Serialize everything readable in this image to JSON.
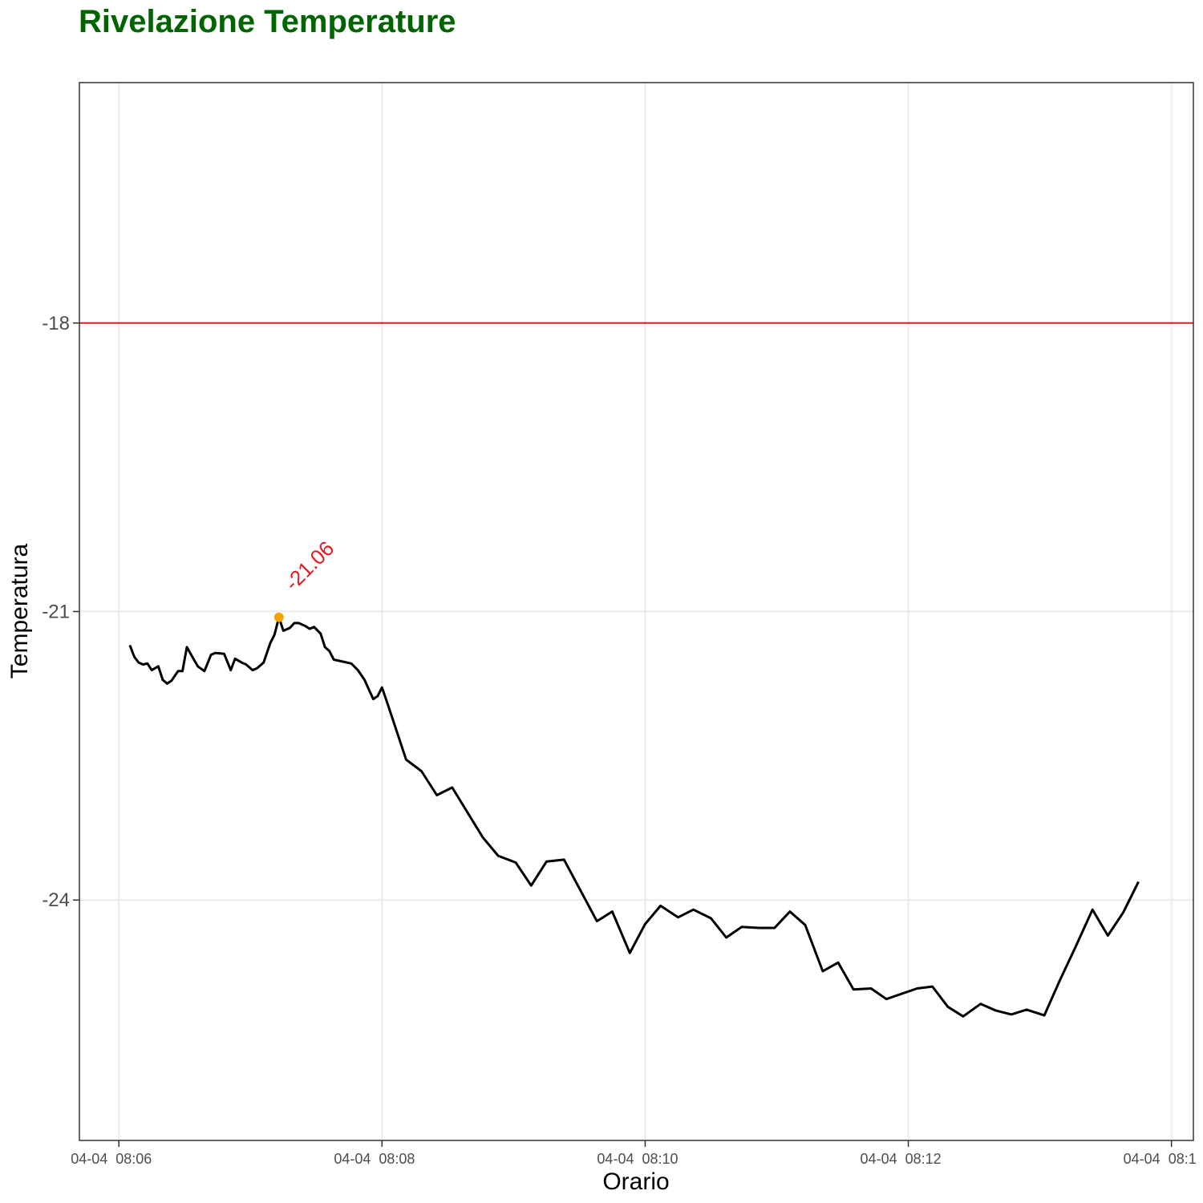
{
  "chart_data": {
    "type": "line",
    "title": "Rivelazione Temperature",
    "xlabel": "Orario",
    "ylabel": "Temperatura",
    "x_axis_kind": "time",
    "xlim": [
      "08:05:42",
      "08:14:10"
    ],
    "ylim": [
      -26.5,
      -15.5
    ],
    "y_ticks": [
      -18,
      -21,
      -24
    ],
    "y_tick_labels": [
      "-18",
      "-21",
      "-24"
    ],
    "x_ticks": [
      "08:06:00",
      "08:08:00",
      "08:10:00",
      "08:12:00",
      "08:14:00"
    ],
    "x_tick_labels": [
      "04-04  08:06",
      "04-04  08:08",
      "04-04  08:10",
      "04-04  08:12",
      "04-04  08:1"
    ],
    "grid": true,
    "threshold": {
      "value": -18,
      "color": "#e41a1c"
    },
    "series": [
      {
        "color": "#000000",
        "points": [
          [
            "08:06:05",
            -21.35
          ],
          [
            "08:06:07",
            -21.47
          ],
          [
            "08:06:09",
            -21.53
          ],
          [
            "08:06:11",
            -21.55
          ],
          [
            "08:06:13",
            -21.54
          ],
          [
            "08:06:15",
            -21.61
          ],
          [
            "08:06:18",
            -21.57
          ],
          [
            "08:06:20",
            -21.71
          ],
          [
            "08:06:22",
            -21.75
          ],
          [
            "08:06:24",
            -21.72
          ],
          [
            "08:06:27",
            -21.62
          ],
          [
            "08:06:29",
            -21.62
          ],
          [
            "08:06:31",
            -21.37
          ],
          [
            "08:06:33",
            -21.45
          ],
          [
            "08:06:36",
            -21.57
          ],
          [
            "08:06:39",
            -21.62
          ],
          [
            "08:06:42",
            -21.45
          ],
          [
            "08:06:44",
            -21.43
          ],
          [
            "08:06:48",
            -21.44
          ],
          [
            "08:06:51",
            -21.61
          ],
          [
            "08:06:53",
            -21.49
          ],
          [
            "08:06:56",
            -21.53
          ],
          [
            "08:06:58",
            -21.55
          ],
          [
            "08:07:01",
            -21.61
          ],
          [
            "08:07:03",
            -21.59
          ],
          [
            "08:07:06",
            -21.53
          ],
          [
            "08:07:09",
            -21.33
          ],
          [
            "08:07:11",
            -21.24
          ],
          [
            "08:07:13",
            -21.06
          ],
          [
            "08:07:15",
            -21.2
          ],
          [
            "08:07:18",
            -21.17
          ],
          [
            "08:07:20",
            -21.12
          ],
          [
            "08:07:22",
            -21.12
          ],
          [
            "08:07:25",
            -21.15
          ],
          [
            "08:07:27",
            -21.18
          ],
          [
            "08:07:29",
            -21.16
          ],
          [
            "08:07:32",
            -21.23
          ],
          [
            "08:07:34",
            -21.37
          ],
          [
            "08:07:36",
            -21.41
          ],
          [
            "08:07:38",
            -21.5
          ],
          [
            "08:07:42",
            -21.52
          ],
          [
            "08:07:46",
            -21.54
          ],
          [
            "08:07:49",
            -21.61
          ],
          [
            "08:07:52",
            -21.71
          ],
          [
            "08:07:54",
            -21.81
          ],
          [
            "08:07:56",
            -21.91
          ],
          [
            "08:07:58",
            -21.88
          ],
          [
            "08:08:00",
            -21.79
          ],
          [
            "08:08:03",
            -21.99
          ],
          [
            "08:08:11",
            -22.54
          ],
          [
            "08:08:18",
            -22.66
          ],
          [
            "08:08:25",
            -22.91
          ],
          [
            "08:08:32",
            -22.83
          ],
          [
            "08:08:46",
            -23.35
          ],
          [
            "08:08:53",
            -23.54
          ],
          [
            "08:09:01",
            -23.61
          ],
          [
            "08:09:08",
            -23.85
          ],
          [
            "08:09:15",
            -23.6
          ],
          [
            "08:09:23",
            -23.58
          ],
          [
            "08:09:38",
            -24.22
          ],
          [
            "08:09:45",
            -24.12
          ],
          [
            "08:09:53",
            -24.55
          ],
          [
            "08:10:00",
            -24.25
          ],
          [
            "08:10:07",
            -24.06
          ],
          [
            "08:10:15",
            -24.18
          ],
          [
            "08:10:22",
            -24.1
          ],
          [
            "08:10:30",
            -24.19
          ],
          [
            "08:10:37",
            -24.39
          ],
          [
            "08:10:44",
            -24.28
          ],
          [
            "08:10:52",
            -24.29
          ],
          [
            "08:10:59",
            -24.29
          ],
          [
            "08:11:06",
            -24.12
          ],
          [
            "08:11:13",
            -24.26
          ],
          [
            "08:11:21",
            -24.74
          ],
          [
            "08:11:28",
            -24.65
          ],
          [
            "08:11:35",
            -24.93
          ],
          [
            "08:11:43",
            -24.92
          ],
          [
            "08:11:50",
            -25.03
          ],
          [
            "08:12:04",
            -24.92
          ],
          [
            "08:12:11",
            -24.9
          ],
          [
            "08:12:18",
            -25.11
          ],
          [
            "08:12:25",
            -25.21
          ],
          [
            "08:12:33",
            -25.08
          ],
          [
            "08:12:40",
            -25.15
          ],
          [
            "08:12:47",
            -25.19
          ],
          [
            "08:12:54",
            -25.14
          ],
          [
            "08:13:02",
            -25.2
          ],
          [
            "08:13:09",
            -24.84
          ],
          [
            "08:13:16",
            -24.5
          ],
          [
            "08:13:24",
            -24.1
          ],
          [
            "08:13:31",
            -24.37
          ],
          [
            "08:13:38",
            -24.13
          ],
          [
            "08:13:45",
            -23.81
          ]
        ]
      }
    ],
    "highlight": {
      "x": "08:07:13",
      "y": -21.06,
      "label": "-21.06",
      "point_color": "#f5a300",
      "label_color": "#e41a1c"
    },
    "colors": {
      "title": "#006400",
      "panel_border": "#333333",
      "grid": "#ebebeb",
      "axis_tick": "#333333"
    }
  }
}
